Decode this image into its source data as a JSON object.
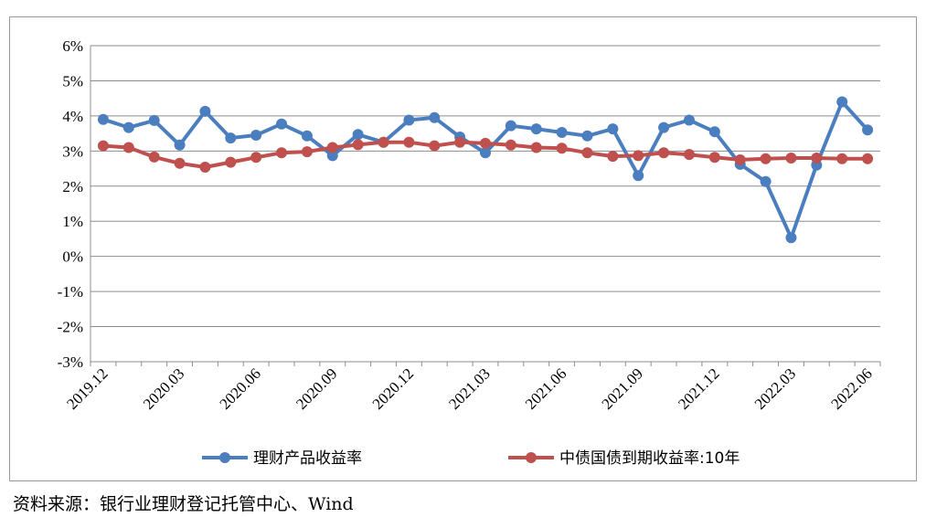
{
  "chart_data": {
    "type": "line",
    "title": "",
    "xlabel": "",
    "ylabel": "",
    "ylim": [
      -3,
      6
    ],
    "yticks": [
      -3,
      -2,
      -1,
      0,
      1,
      2,
      3,
      4,
      5,
      6
    ],
    "ytick_labels": [
      "-3%",
      "-2%",
      "-1%",
      "0%",
      "1%",
      "2%",
      "3%",
      "4%",
      "5%",
      "6%"
    ],
    "grid": true,
    "legend_position": "bottom",
    "x": [
      "2019.12",
      "2020.01",
      "2020.02",
      "2020.03",
      "2020.04",
      "2020.05",
      "2020.06",
      "2020.07",
      "2020.08",
      "2020.09",
      "2020.10",
      "2020.11",
      "2020.12",
      "2021.01",
      "2021.02",
      "2021.03",
      "2021.04",
      "2021.05",
      "2021.06",
      "2021.07",
      "2021.08",
      "2021.09",
      "2021.10",
      "2021.11",
      "2021.12",
      "2022.01",
      "2022.02",
      "2022.03",
      "2022.04",
      "2022.05",
      "2022.06"
    ],
    "xtick_labels": [
      "2019.12",
      "2020.03",
      "2020.06",
      "2020.09",
      "2020.12",
      "2021.03",
      "2021.06",
      "2021.09",
      "2021.12",
      "2022.03",
      "2022.06"
    ],
    "series": [
      {
        "name": "理财产品收益率",
        "color": "#4a7ebf",
        "values": [
          3.9,
          3.67,
          3.87,
          3.17,
          4.13,
          3.37,
          3.45,
          3.77,
          3.43,
          2.87,
          3.47,
          3.25,
          3.88,
          3.95,
          3.4,
          2.95,
          3.72,
          3.63,
          3.53,
          3.43,
          3.63,
          2.3,
          3.67,
          3.88,
          3.55,
          2.62,
          2.13,
          0.53,
          2.6,
          4.4,
          3.6
        ]
      },
      {
        "name": "中债国债到期收益率:10年",
        "color": "#c0504d",
        "values": [
          3.15,
          3.1,
          2.83,
          2.65,
          2.54,
          2.68,
          2.82,
          2.95,
          2.98,
          3.1,
          3.18,
          3.25,
          3.25,
          3.15,
          3.25,
          3.22,
          3.17,
          3.1,
          3.08,
          2.95,
          2.85,
          2.87,
          2.95,
          2.9,
          2.82,
          2.75,
          2.78,
          2.8,
          2.8,
          2.78,
          2.78
        ]
      }
    ]
  },
  "source_note": "资料来源：银行业理财登记托管中心、Wind"
}
